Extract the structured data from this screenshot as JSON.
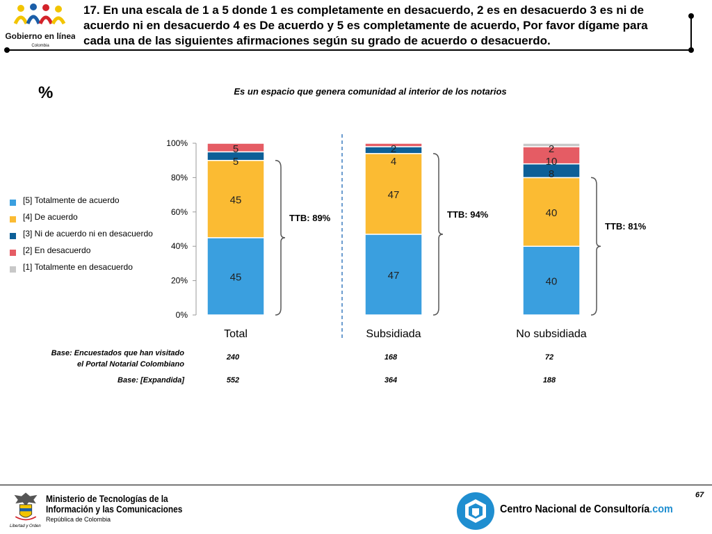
{
  "header": {
    "logo_text": "Gobierno en línea",
    "logo_country": "Colombia",
    "question": "17. En una escala de 1 a 5 donde 1 es completamente en desacuerdo, 2 es en desacuerdo 3 es ni de acuerdo ni en desacuerdo 4 es De acuerdo y 5 es completamente de acuerdo, Por favor dígame para cada una de las siguientes afirmaciones según su grado de acuerdo o desacuerdo."
  },
  "percent_symbol": "%",
  "colors": {
    "s5": "#3a9fdf",
    "s4": "#fbbb33",
    "s3": "#0d5f97",
    "s2": "#e55c64",
    "s1": "#c8c8c8"
  },
  "legend": [
    {
      "label": "[5] Totalmente de acuerdo",
      "color": "#3a9fdf"
    },
    {
      "label": "[4] De acuerdo",
      "color": "#fbbb33"
    },
    {
      "label": "[3] Ni de acuerdo ni en desacuerdo",
      "color": "#0d5f97"
    },
    {
      "label": "[2] En desacuerdo",
      "color": "#e55c64"
    },
    {
      "label": "[1] Totalmente en desacuerdo",
      "color": "#c8c8c8"
    }
  ],
  "chart_data": {
    "type": "bar",
    "stacked": true,
    "title": "Es un espacio que genera comunidad al interior de los notarios",
    "categories": [
      "Total",
      "Subsidiada",
      "No subsidiada"
    ],
    "yticks": [
      "0%",
      "20%",
      "40%",
      "60%",
      "80%",
      "100%"
    ],
    "ylim": [
      0,
      100
    ],
    "series": [
      {
        "name": "[5] Totalmente de acuerdo",
        "values": [
          45,
          47,
          40
        ],
        "labels": [
          "45",
          "47",
          "40"
        ]
      },
      {
        "name": "[4] De acuerdo",
        "values": [
          45,
          47,
          40
        ],
        "labels": [
          "45",
          "47",
          "40"
        ]
      },
      {
        "name": "[3] Ni de acuerdo ni en desacuerdo",
        "values": [
          5,
          4,
          8
        ],
        "labels": [
          "5",
          "4",
          "8"
        ]
      },
      {
        "name": "[2] En desacuerdo",
        "values": [
          5,
          2,
          10
        ],
        "labels": [
          "5",
          "2",
          "10"
        ]
      },
      {
        "name": "[1] Totalmente en desacuerdo",
        "values": [
          0,
          0,
          2
        ],
        "labels": [
          "",
          "",
          "2"
        ]
      }
    ],
    "ttb": [
      "TTB: 89%",
      "TTB: 94%",
      "TTB: 81%"
    ]
  },
  "bases": {
    "row1_label_line1": "Base: Encuestados que han visitado",
    "row1_label_line2": "el Portal Notarial Colombiano",
    "row1_values": [
      "240",
      "168",
      "72"
    ],
    "row2_label": "Base: [Expandida]",
    "row2_values": [
      "552",
      "364",
      "188"
    ]
  },
  "footer": {
    "page_number": "67",
    "ministry_line1": "Ministerio de Tecnologías de la",
    "ministry_line2": "Información y las Comunicaciones",
    "ministry_sub": "República de Colombia",
    "ministry_motto": "Libertad y Orden",
    "cnc_name": "Centro Nacional de Consultoría",
    "cnc_suffix": ".com"
  }
}
